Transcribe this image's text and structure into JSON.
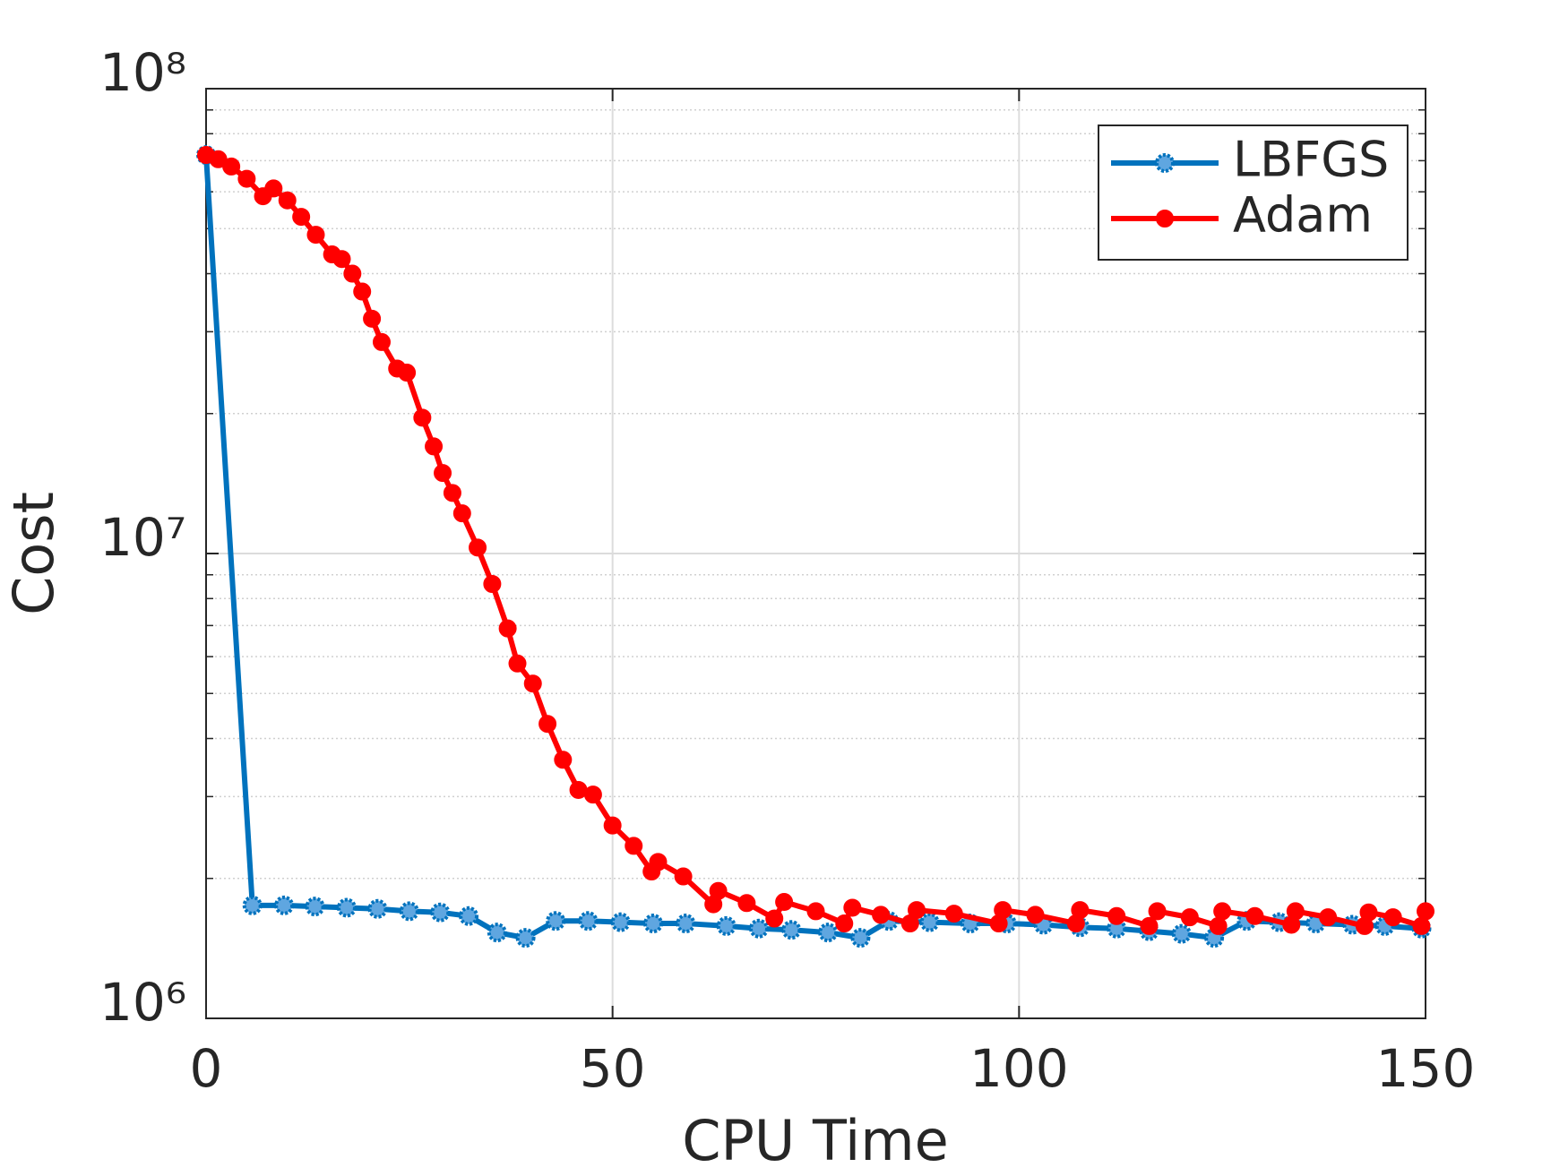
{
  "chart_data": {
    "type": "line",
    "x_label": "CPU Time",
    "y_label": "Cost",
    "xlim": [
      0,
      150
    ],
    "xticks": [
      0,
      50,
      100,
      150
    ],
    "ylim": [
      1000000,
      100000000
    ],
    "yticks": [
      {
        "value": 1000000,
        "label": "10⁶"
      },
      {
        "value": 10000000,
        "label": "10⁷"
      },
      {
        "value": 100000000,
        "label": "10⁸"
      }
    ],
    "yminorticks": [
      2000000,
      3000000,
      4000000,
      5000000,
      6000000,
      7000000,
      8000000,
      9000000,
      20000000,
      30000000,
      40000000,
      50000000,
      60000000,
      70000000,
      80000000,
      90000000
    ],
    "log_y": true,
    "grid": true,
    "legend": "northeast",
    "series": [
      {
        "name": "LBFGS",
        "color": "#0072bd",
        "marker": "star-circle",
        "x": [
          0,
          5.7,
          9.6,
          13.4,
          17.3,
          21.1,
          25,
          28.8,
          32.3,
          35.8,
          39.3,
          43,
          47,
          51,
          55,
          59,
          64,
          68,
          72,
          76.5,
          80.5,
          84,
          89,
          94,
          98.5,
          103,
          107.5,
          112,
          116,
          120,
          124,
          128,
          132,
          136.5,
          141,
          145,
          149.5
        ],
        "values": [
          72000000,
          1750000,
          1750000,
          1740000,
          1730000,
          1720000,
          1700000,
          1690000,
          1660000,
          1530000,
          1490000,
          1620000,
          1620000,
          1610000,
          1600000,
          1600000,
          1580000,
          1560000,
          1550000,
          1530000,
          1490000,
          1620000,
          1610000,
          1600000,
          1600000,
          1590000,
          1570000,
          1560000,
          1540000,
          1520000,
          1490000,
          1620000,
          1610000,
          1600000,
          1590000,
          1580000,
          1560000
        ]
      },
      {
        "name": "Adam",
        "color": "#ff0000",
        "marker": "dot",
        "x": [
          0,
          1.5,
          3.1,
          5,
          7,
          8.3,
          10,
          11.7,
          13.5,
          15.5,
          16.7,
          18,
          19.2,
          20.4,
          21.6,
          23.5,
          24.7,
          26.6,
          28,
          29.1,
          30.3,
          31.5,
          33.4,
          35.2,
          37.1,
          38.3,
          40.2,
          42,
          43.9,
          45.8,
          47.6,
          50,
          52.6,
          54.8,
          55.6,
          58.7,
          62.4,
          63,
          66.5,
          69.9,
          71.1,
          75,
          78.5,
          79.5,
          83,
          86.6,
          87.4,
          92,
          97.5,
          98,
          102,
          107,
          107.5,
          112,
          116,
          117,
          121,
          124.5,
          125,
          129,
          133.5,
          134,
          138,
          142.5,
          143,
          146,
          149.5,
          150
        ],
        "values": [
          72000000,
          70500000,
          68000000,
          64000000,
          58700000,
          61000000,
          57500000,
          53000000,
          48500000,
          44000000,
          43000000,
          40000000,
          36600000,
          32000000,
          28500000,
          25000000,
          24500000,
          19600000,
          17000000,
          14900000,
          13500000,
          12200000,
          10300000,
          8600000,
          6900000,
          5800000,
          5250000,
          4300000,
          3600000,
          3100000,
          3030000,
          2600000,
          2350000,
          2070000,
          2170000,
          2020000,
          1760000,
          1880000,
          1770000,
          1640000,
          1780000,
          1700000,
          1600000,
          1730000,
          1670000,
          1600000,
          1710000,
          1680000,
          1600000,
          1710000,
          1670000,
          1600000,
          1710000,
          1660000,
          1580000,
          1700000,
          1650000,
          1580000,
          1700000,
          1660000,
          1590000,
          1700000,
          1650000,
          1580000,
          1690000,
          1650000,
          1580000,
          1700000
        ]
      }
    ]
  }
}
